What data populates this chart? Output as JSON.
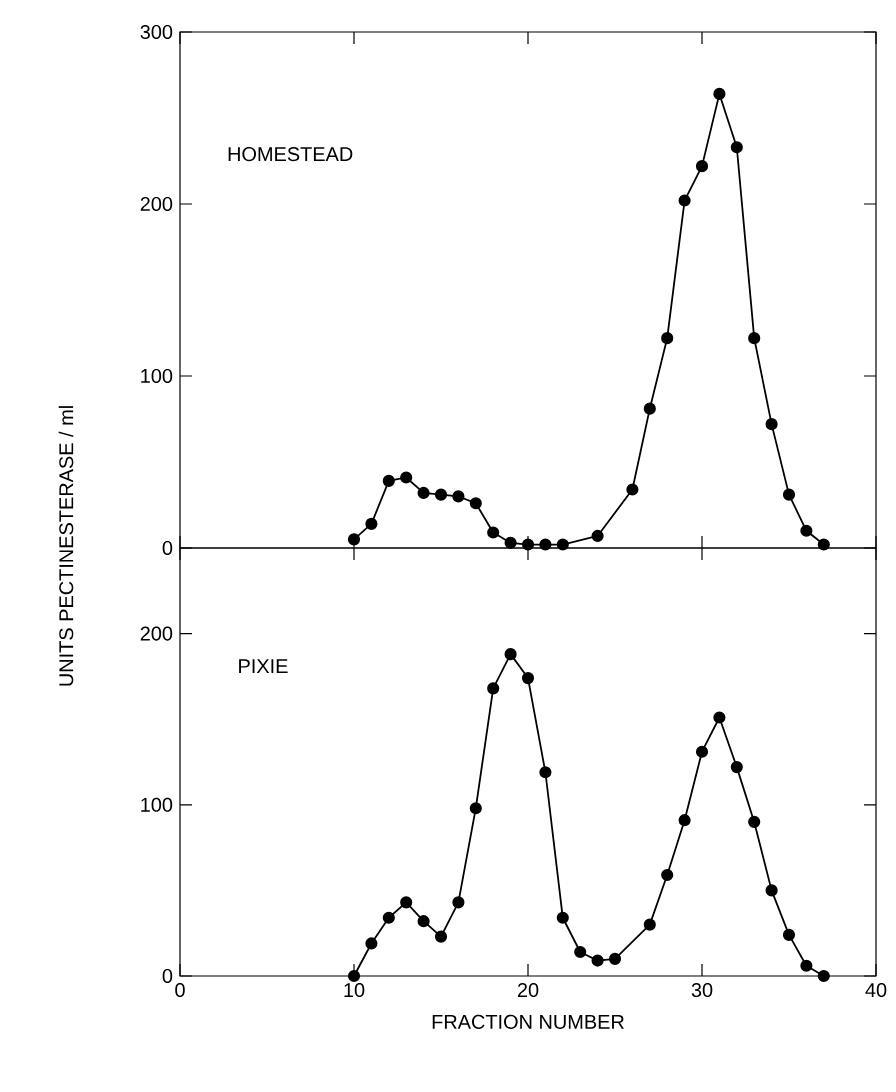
{
  "chart_data": [
    {
      "type": "line",
      "title": "HOMESTEAD",
      "ylabel": "UNITS  PECTINESTERASE / ml",
      "xlim": [
        0,
        40
      ],
      "xticks": [
        0,
        10,
        20,
        30,
        40
      ],
      "ylim": [
        0,
        300
      ],
      "yticks": [
        0,
        100,
        200,
        300
      ],
      "tick_labels": "y",
      "marker": "circle",
      "line_style": "solid",
      "series": [
        {
          "color": "#000000",
          "x": [
            10,
            11,
            12,
            13,
            14,
            15,
            16,
            17,
            18,
            19,
            20,
            21,
            22,
            24,
            26,
            27,
            28,
            29,
            30,
            31,
            32,
            33,
            34,
            35,
            36,
            37
          ],
          "values": [
            5,
            14,
            39,
            41,
            32,
            31,
            30,
            26,
            9,
            3,
            2,
            2,
            2,
            7,
            34,
            81,
            122,
            202,
            222,
            264,
            233,
            122,
            72,
            31,
            10,
            2
          ]
        }
      ]
    },
    {
      "type": "line",
      "title": "PIXIE",
      "xlabel": "FRACTION NUMBER",
      "xlim": [
        0,
        40
      ],
      "xticks": [
        0,
        10,
        20,
        30,
        40
      ],
      "ylim": [
        0,
        250
      ],
      "yticks": [
        0,
        100,
        200
      ],
      "marker": "circle",
      "line_style": "solid",
      "series": [
        {
          "color": "#000000",
          "x": [
            10,
            11,
            12,
            13,
            14,
            15,
            16,
            17,
            18,
            19,
            20,
            21,
            22,
            23,
            24,
            25,
            27,
            28,
            29,
            30,
            31,
            32,
            33,
            34,
            35,
            36,
            37
          ],
          "values": [
            0,
            19,
            34,
            43,
            32,
            23,
            43,
            98,
            168,
            188,
            174,
            119,
            34,
            14,
            9,
            10,
            30,
            59,
            91,
            131,
            151,
            122,
            90,
            50,
            24,
            6,
            0
          ]
        }
      ]
    }
  ]
}
